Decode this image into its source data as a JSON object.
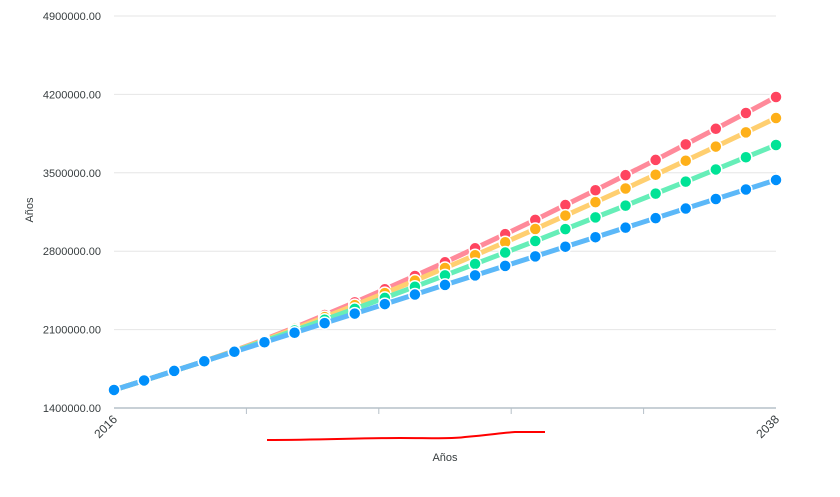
{
  "chart_data": {
    "type": "line",
    "title": "",
    "xlabel": "Años",
    "ylabel": "Años",
    "x": [
      2016,
      2017,
      2018,
      2019,
      2020,
      2021,
      2022,
      2023,
      2024,
      2025,
      2026,
      2027,
      2028,
      2029,
      2030,
      2031,
      2032,
      2033,
      2034,
      2035,
      2036,
      2037,
      2038
    ],
    "x_tick_labels": [
      "2016",
      "2038"
    ],
    "ylim": [
      1400000,
      4900000
    ],
    "y_ticks": [
      "1400000.00",
      "2100000.00",
      "2800000.00",
      "3500000.00",
      "4200000.00",
      "4900000.00"
    ],
    "grid": true,
    "legend": "none",
    "series": [
      {
        "color": "#ff4560",
        "line_color": "#ff8a9a",
        "values": [
          1561000,
          1646000,
          1731000,
          1817000,
          1911000,
          2012000,
          2118000,
          2230000,
          2343000,
          2460000,
          2579000,
          2701000,
          2826000,
          2952000,
          3080000,
          3212000,
          3344000,
          3479000,
          3615000,
          3754000,
          3893000,
          4034000,
          4177000
        ]
      },
      {
        "color": "#feb019",
        "line_color": "#ffcf70",
        "values": [
          1561000,
          1646000,
          1731000,
          1817000,
          1909000,
          2006000,
          2107000,
          2211000,
          2318000,
          2426000,
          2537000,
          2650000,
          2764000,
          2880000,
          2998000,
          3118000,
          3238000,
          3360000,
          3483000,
          3608000,
          3734000,
          3861000,
          3989000
        ]
      },
      {
        "color": "#00e396",
        "line_color": "#66eeb8",
        "values": [
          1561000,
          1646000,
          1731000,
          1817000,
          1906000,
          1998000,
          2092000,
          2188000,
          2285000,
          2383000,
          2483000,
          2584000,
          2686000,
          2788000,
          2891000,
          2997000,
          3102000,
          3207000,
          3314000,
          3421000,
          3530000,
          3639000,
          3748000
        ]
      },
      {
        "color": "#008ffb",
        "line_color": "#5cb8f8",
        "values": [
          1561000,
          1646000,
          1731000,
          1817000,
          1902000,
          1987000,
          2072000,
          2158000,
          2243000,
          2328000,
          2413000,
          2499000,
          2584000,
          2669000,
          2754000,
          2840000,
          2925000,
          3010000,
          3095000,
          3181000,
          3266000,
          3351000,
          3436000
        ]
      }
    ]
  }
}
